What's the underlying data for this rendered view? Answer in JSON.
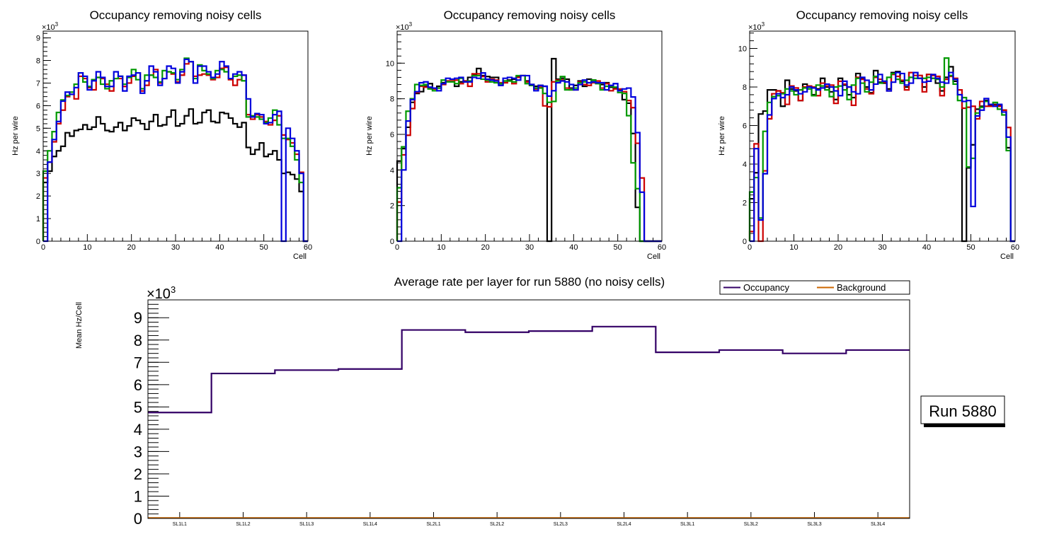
{
  "chart_data": [
    {
      "type": "histogram-step",
      "title": "Occupancy removing noisy cells",
      "xlabel": "Cell",
      "ylabel": "Hz per wire",
      "yexp": "×10",
      "yexp_power": "3",
      "xlim": [
        0,
        60
      ],
      "ylim": [
        0,
        9.3
      ],
      "xticks": [
        "0",
        "10",
        "20",
        "30",
        "40",
        "50",
        "60"
      ],
      "yticks": [
        "0",
        "1",
        "2",
        "3",
        "4",
        "5",
        "6",
        "7",
        "8",
        "9"
      ],
      "ytick_values": [
        0,
        1,
        2,
        3,
        4,
        5,
        6,
        7,
        8,
        9
      ],
      "series": [
        {
          "name": "black",
          "color": "#000000",
          "values": [
            2.6,
            3.1,
            3.75,
            4.0,
            4.2,
            4.8,
            4.65,
            4.9,
            4.95,
            5.15,
            4.95,
            5.05,
            5.5,
            5.2,
            4.9,
            4.85,
            5.05,
            5.25,
            4.9,
            5.1,
            5.45,
            5.35,
            5.2,
            4.95,
            5.3,
            5.6,
            5.1,
            5.15,
            5.5,
            5.8,
            5.1,
            5.2,
            5.55,
            5.85,
            5.2,
            5.25,
            5.7,
            5.8,
            5.3,
            5.25,
            5.7,
            5.65,
            5.45,
            5.2,
            5.05,
            5.25,
            4.15,
            3.85,
            4.05,
            4.35,
            3.75,
            3.85,
            4.0,
            3.6,
            3.0,
            3.05,
            2.95,
            2.75,
            2.2,
            0
          ]
        },
        {
          "name": "red",
          "color": "#cc0000",
          "values": [
            2.8,
            3.5,
            4.4,
            5.2,
            5.8,
            6.4,
            6.5,
            6.3,
            7.3,
            7.2,
            6.8,
            6.7,
            7.25,
            7.2,
            6.95,
            6.65,
            7.2,
            7.2,
            6.85,
            7.0,
            7.3,
            7.45,
            6.65,
            6.9,
            7.35,
            7.6,
            7.0,
            7.2,
            7.5,
            7.4,
            7.05,
            7.35,
            7.85,
            7.95,
            7.3,
            7.35,
            7.4,
            7.35,
            7.15,
            7.25,
            7.65,
            7.7,
            7.15,
            6.9,
            7.15,
            7.35,
            5.6,
            5.4,
            5.6,
            5.5,
            5.3,
            5.15,
            5.35,
            5.55,
            4.7,
            4.5,
            4.35,
            3.85,
            3.05,
            0
          ]
        },
        {
          "name": "green",
          "color": "#009900",
          "values": [
            3.1,
            4.0,
            4.85,
            5.7,
            6.25,
            6.45,
            6.6,
            6.95,
            7.45,
            7.05,
            6.85,
            7.15,
            7.25,
            6.95,
            6.75,
            7.1,
            7.2,
            7.3,
            6.95,
            7.25,
            7.6,
            7.15,
            6.75,
            7.35,
            7.35,
            7.25,
            7.05,
            7.55,
            7.5,
            7.45,
            7.15,
            7.6,
            8.1,
            7.95,
            7.2,
            7.8,
            7.55,
            7.4,
            7.2,
            7.55,
            7.6,
            7.5,
            7.2,
            7.3,
            7.35,
            7.1,
            5.5,
            5.55,
            5.5,
            5.4,
            5.25,
            5.45,
            5.8,
            5.15,
            4.55,
            4.55,
            4.2,
            3.6,
            2.6,
            0
          ]
        },
        {
          "name": "blue",
          "color": "#0000dd",
          "values": [
            0,
            3.5,
            4.5,
            5.3,
            6.2,
            6.6,
            6.5,
            6.8,
            7.45,
            7.3,
            6.7,
            7.1,
            7.5,
            7.25,
            6.85,
            6.85,
            7.5,
            7.3,
            6.65,
            7.3,
            7.35,
            7.45,
            6.55,
            7.1,
            7.75,
            7.5,
            6.9,
            7.2,
            7.75,
            7.65,
            7.0,
            7.5,
            8.05,
            7.95,
            7.0,
            7.75,
            7.75,
            7.5,
            7.25,
            7.4,
            7.95,
            7.75,
            7.2,
            7.4,
            7.5,
            7.35,
            6.3,
            5.5,
            5.65,
            5.6,
            5.2,
            5.25,
            5.6,
            5.75,
            0,
            5.0,
            4.55,
            4.0,
            3.0,
            0
          ]
        }
      ]
    },
    {
      "type": "histogram-step",
      "title": "Occupancy removing noisy cells",
      "xlabel": "Cell",
      "ylabel": "Hz per wire",
      "yexp": "×10",
      "yexp_power": "3",
      "xlim": [
        0,
        60
      ],
      "ylim": [
        0,
        11.8
      ],
      "xticks": [
        "0",
        "10",
        "20",
        "30",
        "40",
        "50",
        "60"
      ],
      "yticks": [
        "0",
        "2",
        "4",
        "6",
        "8",
        "10"
      ],
      "ytick_values": [
        0,
        2,
        4,
        6,
        8,
        10
      ],
      "series": [
        {
          "name": "black",
          "color": "#000000",
          "values": [
            4.5,
            5.2,
            6.4,
            7.8,
            8.3,
            8.4,
            8.7,
            8.85,
            8.6,
            8.7,
            8.9,
            9.0,
            9.0,
            8.7,
            8.95,
            9.0,
            9.2,
            9.35,
            9.7,
            9.3,
            9.25,
            9.2,
            9.2,
            8.85,
            9.0,
            9.05,
            9.1,
            9.25,
            9.3,
            9.0,
            8.8,
            8.7,
            8.75,
            8.7,
            0,
            10.25,
            9.1,
            9.15,
            9.1,
            8.6,
            8.75,
            9.0,
            8.7,
            9.1,
            9.05,
            8.9,
            8.8,
            8.9,
            8.65,
            8.6,
            8.5,
            7.95,
            7.75,
            6.05,
            1.9,
            0,
            0,
            0,
            0,
            0
          ]
        },
        {
          "name": "red",
          "color": "#cc0000",
          "values": [
            2.2,
            4.85,
            5.95,
            7.45,
            8.35,
            8.7,
            8.65,
            8.6,
            8.55,
            8.6,
            8.8,
            9.0,
            9.0,
            9.05,
            8.85,
            9.0,
            8.7,
            9.4,
            9.4,
            9.25,
            8.95,
            9.1,
            9.05,
            8.9,
            8.9,
            9.0,
            8.85,
            9.2,
            9.3,
            8.95,
            8.75,
            8.55,
            8.65,
            7.6,
            7.55,
            8.95,
            9.05,
            9.05,
            8.6,
            8.5,
            8.5,
            8.95,
            8.8,
            8.75,
            8.9,
            9.0,
            8.6,
            8.85,
            8.45,
            8.55,
            8.55,
            8.4,
            7.9,
            7.5,
            5.5,
            3.55,
            0,
            0,
            0,
            0
          ]
        },
        {
          "name": "green",
          "color": "#009900",
          "values": [
            3.0,
            5.3,
            7.3,
            8.0,
            8.8,
            8.75,
            8.8,
            8.55,
            8.45,
            8.6,
            9.05,
            8.95,
            8.95,
            8.85,
            9.15,
            8.95,
            9.0,
            9.3,
            9.3,
            9.1,
            9.05,
            8.95,
            8.9,
            8.85,
            9.0,
            9.0,
            8.95,
            9.3,
            9.3,
            8.85,
            8.75,
            8.6,
            8.6,
            8.3,
            7.8,
            7.85,
            9.0,
            9.25,
            8.5,
            8.5,
            8.6,
            8.9,
            8.95,
            8.9,
            9.05,
            8.85,
            8.5,
            8.7,
            8.7,
            8.65,
            8.35,
            8.3,
            7.05,
            4.4,
            2.95,
            0,
            0,
            0,
            0,
            0
          ]
        },
        {
          "name": "blue",
          "color": "#0000dd",
          "values": [
            0,
            4.0,
            6.75,
            7.95,
            8.4,
            8.9,
            8.95,
            8.65,
            8.6,
            8.45,
            8.85,
            9.15,
            9.1,
            9.15,
            9.2,
            8.95,
            8.95,
            9.2,
            9.15,
            9.45,
            9.1,
            9.05,
            9.0,
            8.75,
            9.15,
            9.2,
            9.15,
            9.05,
            9.3,
            9.3,
            8.8,
            8.45,
            8.75,
            8.7,
            8.15,
            8.45,
            8.9,
            9.0,
            8.95,
            8.8,
            8.5,
            8.8,
            9.05,
            8.9,
            8.95,
            8.9,
            8.9,
            8.5,
            8.75,
            8.85,
            8.45,
            8.55,
            8.6,
            8.1,
            6.1,
            2.75,
            0,
            0,
            0,
            0
          ]
        }
      ]
    },
    {
      "type": "histogram-step",
      "title": "Occupancy removing noisy cells",
      "xlabel": "Cell",
      "ylabel": "Hz per wire",
      "yexp": "×10",
      "yexp_power": "3",
      "xlim": [
        0,
        60
      ],
      "ylim": [
        0,
        10.9
      ],
      "xticks": [
        "0",
        "10",
        "20",
        "30",
        "40",
        "50",
        "60"
      ],
      "yticks": [
        "0",
        "2",
        "4",
        "6",
        "8",
        "10"
      ],
      "ytick_values": [
        0,
        2,
        4,
        6,
        8,
        10
      ],
      "series": [
        {
          "name": "black",
          "color": "#000000",
          "values": [
            2.2,
            3.55,
            6.6,
            6.75,
            7.85,
            7.85,
            7.8,
            7.0,
            8.35,
            7.9,
            7.8,
            7.3,
            8.15,
            8.0,
            7.6,
            7.9,
            8.45,
            8.0,
            7.75,
            7.35,
            8.45,
            8.1,
            7.6,
            7.45,
            8.7,
            8.45,
            8.0,
            7.7,
            8.85,
            8.25,
            8.2,
            7.9,
            8.75,
            8.8,
            8.3,
            8.0,
            8.75,
            8.75,
            8.45,
            8.0,
            8.65,
            8.45,
            8.2,
            7.8,
            8.5,
            9.05,
            8.3,
            7.6,
            0,
            3.8,
            5.0,
            6.85,
            7.0,
            7.3,
            7.05,
            7.1,
            7.05,
            6.8,
            4.85,
            0
          ]
        },
        {
          "name": "red",
          "color": "#cc0000",
          "values": [
            0.5,
            5.05,
            0,
            3.65,
            6.35,
            7.65,
            7.8,
            7.7,
            7.1,
            8.05,
            7.95,
            7.3,
            8.0,
            8.05,
            8.0,
            7.55,
            8.2,
            8.05,
            8.1,
            7.15,
            8.3,
            8.15,
            8.0,
            7.05,
            8.5,
            8.4,
            7.9,
            7.65,
            8.5,
            8.4,
            8.25,
            7.8,
            8.65,
            8.55,
            8.35,
            7.85,
            8.75,
            8.6,
            8.6,
            7.75,
            8.65,
            8.6,
            8.55,
            7.55,
            8.4,
            8.55,
            8.45,
            7.85,
            6.9,
            6.95,
            7.0,
            6.35,
            7.25,
            7.0,
            7.0,
            7.05,
            7.0,
            6.8,
            5.9,
            0
          ]
        },
        {
          "name": "green",
          "color": "#009900",
          "values": [
            2.55,
            3.3,
            1.2,
            5.7,
            7.2,
            7.5,
            7.55,
            7.65,
            7.9,
            7.8,
            7.6,
            7.85,
            7.95,
            7.9,
            7.55,
            8.1,
            8.05,
            7.85,
            7.5,
            8.0,
            8.05,
            7.85,
            7.35,
            8.1,
            8.45,
            8.2,
            7.75,
            8.25,
            8.55,
            8.2,
            8.3,
            8.5,
            8.7,
            8.4,
            8.2,
            8.35,
            8.5,
            8.45,
            8.45,
            8.45,
            8.5,
            8.45,
            8.4,
            8.0,
            9.5,
            8.6,
            8.15,
            7.3,
            7.45,
            3.85,
            4.3,
            6.65,
            6.95,
            7.25,
            7.1,
            7.2,
            6.85,
            6.55,
            4.7,
            0
          ]
        },
        {
          "name": "blue",
          "color": "#0000dd",
          "values": [
            0,
            4.8,
            1.1,
            3.5,
            6.55,
            7.4,
            7.65,
            7.45,
            7.6,
            8.0,
            7.85,
            7.65,
            7.75,
            8.0,
            7.95,
            7.85,
            7.95,
            8.15,
            8.0,
            7.8,
            7.55,
            8.3,
            8.0,
            7.75,
            7.65,
            8.5,
            8.35,
            7.85,
            8.15,
            8.65,
            8.3,
            7.8,
            8.25,
            8.75,
            8.7,
            8.1,
            8.2,
            8.75,
            8.45,
            8.25,
            8.3,
            8.65,
            8.45,
            8.25,
            8.2,
            8.75,
            8.4,
            7.6,
            7.25,
            7.3,
            1.8,
            6.5,
            6.8,
            7.4,
            7.1,
            7.0,
            7.1,
            6.7,
            5.4,
            0
          ]
        }
      ]
    },
    {
      "type": "histogram-step",
      "title": "Average rate per layer for run 5880 (no noisy cells)",
      "xlabel": "",
      "ylabel": "Mean Hz/Cell",
      "yexp": "×10",
      "yexp_power": "3",
      "categories": [
        "SL1L1",
        "SL1L2",
        "SL1L3",
        "SL1L4",
        "SL2L1",
        "SL2L2",
        "SL2L3",
        "SL2L4",
        "SL3L1",
        "SL3L2",
        "SL3L3",
        "SL3L4"
      ],
      "ylim": [
        0,
        9.8
      ],
      "yticks": [
        "0",
        "1",
        "2",
        "3",
        "4",
        "5",
        "6",
        "7",
        "8",
        "9"
      ],
      "ytick_values": [
        0,
        1,
        2,
        3,
        4,
        5,
        6,
        7,
        8,
        9
      ],
      "legend": {
        "position": "top-right",
        "entries": [
          {
            "label": "Occupancy",
            "color": "#330066"
          },
          {
            "label": "Background",
            "color": "#cc6600"
          }
        ]
      },
      "series": [
        {
          "name": "Occupancy",
          "color": "#330066",
          "values": [
            4.75,
            6.5,
            6.65,
            6.7,
            8.45,
            8.35,
            8.4,
            8.6,
            7.45,
            7.55,
            7.4,
            7.55
          ]
        },
        {
          "name": "Background",
          "color": "#cc6600",
          "values": [
            0.02,
            0.02,
            0.02,
            0.02,
            0.02,
            0.02,
            0.02,
            0.02,
            0.02,
            0.02,
            0.02,
            0.02
          ]
        }
      ]
    }
  ],
  "run_label": "Run 5880"
}
